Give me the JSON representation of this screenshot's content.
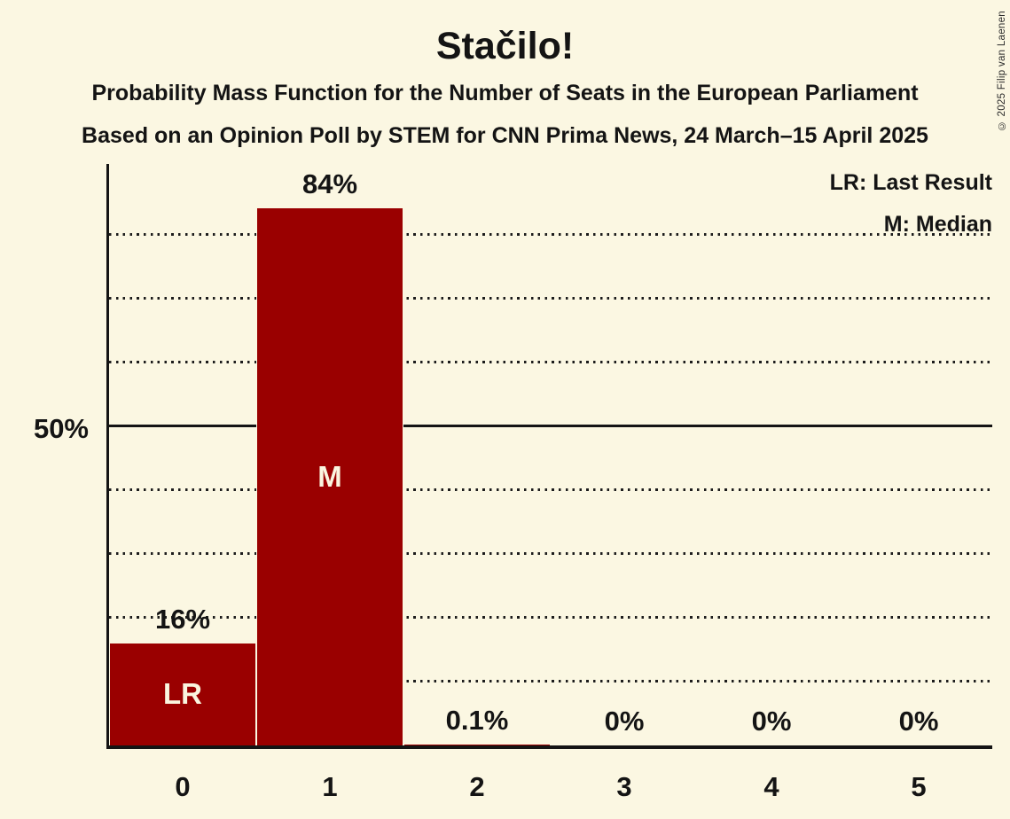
{
  "title": "Stačilo!",
  "subtitle1": "Probability Mass Function for the Number of Seats in the European Parliament",
  "subtitle2": "Based on an Opinion Poll by STEM for CNN Prima News, 24 March–15 April 2025",
  "copyright": "© 2025 Filip van Laenen",
  "legend": {
    "lr": "LR: Last Result",
    "m": "M: Median"
  },
  "y_axis": {
    "label_50": "50%"
  },
  "colors": {
    "background": "#FBF7E2",
    "bar": "#9A0000",
    "text": "#141414",
    "bar_label": "#FAF5DF"
  },
  "chart_data": {
    "type": "bar",
    "title": "Stačilo!",
    "categories": [
      "0",
      "1",
      "2",
      "3",
      "4",
      "5"
    ],
    "values": [
      16,
      84,
      0.1,
      0,
      0,
      0
    ],
    "value_labels": [
      "16%",
      "84%",
      "0.1%",
      "0%",
      "0%",
      "0%"
    ],
    "bar_markers": [
      "LR",
      "M",
      "",
      "",
      "",
      ""
    ],
    "xlabel": "",
    "ylabel": "",
    "ylim": [
      0,
      91
    ],
    "gridlines_pct": [
      10,
      20,
      30,
      40,
      60,
      70,
      80
    ],
    "solid_line_pct": 50,
    "grid": "dotted-horizontal",
    "legend_position": "top-right",
    "annotations": [
      "LR: Last Result",
      "M: Median"
    ]
  }
}
